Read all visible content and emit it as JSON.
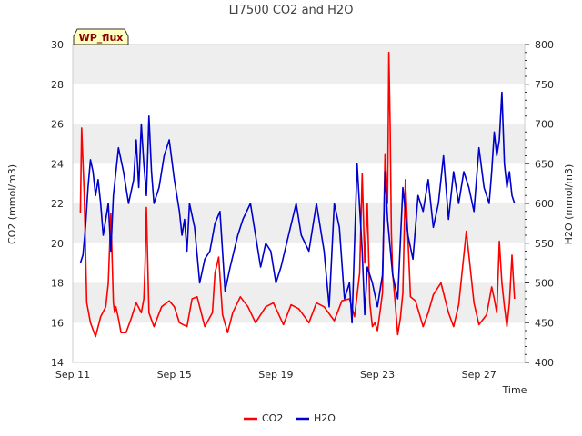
{
  "chart_data": {
    "type": "line",
    "title": "LI7500 CO2 and H2O",
    "xlabel": "Time",
    "ylabel": "CO2 (mmol/m3)",
    "y2label": "H2O (mmol/m3)",
    "badge": "WP_flux",
    "x_ticks": [
      "Sep 11",
      "Sep 15",
      "Sep 19",
      "Sep 23",
      "Sep 27"
    ],
    "x_tick_days": [
      11,
      15,
      19,
      23,
      27
    ],
    "xlim_days": [
      11,
      28.8
    ],
    "ylim": [
      14,
      30
    ],
    "y_ticks": [
      14,
      16,
      18,
      20,
      22,
      24,
      26,
      28,
      30
    ],
    "y2lim": [
      400,
      800
    ],
    "y2_ticks": [
      400,
      450,
      500,
      550,
      600,
      650,
      700,
      750,
      800
    ],
    "grid": "horizontal bands",
    "legend_position": "bottom-center",
    "colors": {
      "CO2": "#ff0000",
      "H2O": "#0000cc",
      "band": "#eeeeee"
    },
    "series": [
      {
        "name": "CO2",
        "axis": "left",
        "x_days": [
          11.3,
          11.35,
          11.45,
          11.55,
          11.7,
          11.9,
          12.1,
          12.3,
          12.4,
          12.5,
          12.6,
          12.65,
          12.7,
          12.8,
          12.9,
          13.1,
          13.3,
          13.5,
          13.7,
          13.8,
          13.85,
          13.9,
          14.0,
          14.2,
          14.5,
          14.8,
          15.0,
          15.2,
          15.5,
          15.7,
          15.9,
          16.2,
          16.5,
          16.6,
          16.75,
          16.9,
          17.1,
          17.3,
          17.6,
          17.9,
          18.2,
          18.6,
          18.9,
          19.3,
          19.6,
          19.9,
          20.3,
          20.6,
          20.9,
          21.3,
          21.6,
          21.9,
          22.1,
          22.3,
          22.4,
          22.5,
          22.6,
          22.7,
          22.8,
          22.9,
          23.0,
          23.1,
          23.2,
          23.3,
          23.4,
          23.45,
          23.5,
          23.55,
          23.6,
          23.7,
          23.8,
          23.9,
          24.0,
          24.1,
          24.3,
          24.5,
          24.8,
          25.0,
          25.2,
          25.5,
          25.8,
          26.0,
          26.2,
          26.5,
          26.8,
          27.0,
          27.3,
          27.5,
          27.6,
          27.7,
          27.8,
          27.9,
          28.0,
          28.1,
          28.2,
          28.3,
          28.4
        ],
        "values": [
          21.5,
          25.8,
          22.5,
          17.0,
          16.0,
          15.3,
          16.3,
          16.8,
          18.0,
          21.5,
          17.0,
          16.5,
          16.8,
          16.2,
          15.5,
          15.5,
          16.2,
          17.0,
          16.5,
          17.2,
          19.0,
          21.8,
          16.5,
          15.8,
          16.8,
          17.1,
          16.8,
          16.0,
          15.8,
          17.2,
          17.3,
          15.8,
          16.5,
          18.5,
          19.3,
          16.4,
          15.5,
          16.5,
          17.3,
          16.8,
          16.0,
          16.8,
          17.0,
          15.9,
          16.9,
          16.7,
          16.0,
          17.0,
          16.8,
          16.1,
          17.1,
          17.2,
          16.3,
          18.5,
          23.5,
          19.0,
          22.0,
          17.0,
          15.8,
          16.0,
          15.6,
          16.5,
          17.5,
          24.5,
          22.0,
          29.6,
          26.0,
          20.5,
          18.5,
          17.0,
          15.4,
          16.2,
          17.5,
          23.2,
          17.3,
          17.1,
          15.8,
          16.5,
          17.4,
          18.0,
          16.5,
          15.8,
          16.9,
          20.6,
          17.0,
          15.9,
          16.4,
          17.8,
          17.2,
          16.5,
          20.1,
          18.0,
          16.8,
          15.8,
          17.0,
          19.4,
          17.2
        ]
      },
      {
        "name": "H2O",
        "axis": "right",
        "x_days": [
          11.3,
          11.4,
          11.5,
          11.6,
          11.7,
          11.8,
          11.9,
          12.0,
          12.1,
          12.2,
          12.3,
          12.4,
          12.5,
          12.6,
          12.8,
          13.0,
          13.2,
          13.4,
          13.5,
          13.6,
          13.7,
          13.8,
          13.9,
          14.0,
          14.1,
          14.2,
          14.4,
          14.6,
          14.8,
          15.0,
          15.2,
          15.3,
          15.4,
          15.5,
          15.6,
          15.8,
          16.0,
          16.2,
          16.4,
          16.6,
          16.8,
          17.0,
          17.2,
          17.5,
          17.7,
          18.0,
          18.2,
          18.4,
          18.6,
          18.8,
          19.0,
          19.2,
          19.5,
          19.8,
          20.0,
          20.3,
          20.6,
          20.9,
          21.1,
          21.3,
          21.5,
          21.7,
          21.9,
          22.0,
          22.2,
          22.4,
          22.5,
          22.6,
          22.8,
          23.0,
          23.2,
          23.3,
          23.4,
          23.6,
          23.8,
          24.0,
          24.2,
          24.4,
          24.6,
          24.8,
          25.0,
          25.2,
          25.4,
          25.6,
          25.8,
          26.0,
          26.2,
          26.4,
          26.6,
          26.8,
          27.0,
          27.2,
          27.4,
          27.5,
          27.6,
          27.7,
          27.8,
          27.9,
          28.0,
          28.1,
          28.2,
          28.3,
          28.4
        ],
        "values": [
          525,
          535,
          570,
          620,
          655,
          640,
          610,
          630,
          600,
          560,
          580,
          600,
          540,
          610,
          670,
          640,
          600,
          630,
          680,
          620,
          700,
          650,
          610,
          710,
          640,
          600,
          620,
          660,
          680,
          630,
          590,
          560,
          580,
          540,
          600,
          570,
          500,
          530,
          540,
          575,
          590,
          490,
          520,
          560,
          580,
          600,
          560,
          520,
          550,
          540,
          500,
          520,
          560,
          600,
          560,
          540,
          600,
          540,
          470,
          600,
          570,
          480,
          500,
          450,
          650,
          540,
          460,
          520,
          500,
          470,
          510,
          640,
          580,
          510,
          480,
          620,
          560,
          530,
          610,
          590,
          630,
          570,
          600,
          660,
          580,
          640,
          600,
          640,
          620,
          590,
          670,
          620,
          600,
          640,
          690,
          660,
          680,
          740,
          650,
          620,
          640,
          610,
          600
        ]
      }
    ]
  }
}
